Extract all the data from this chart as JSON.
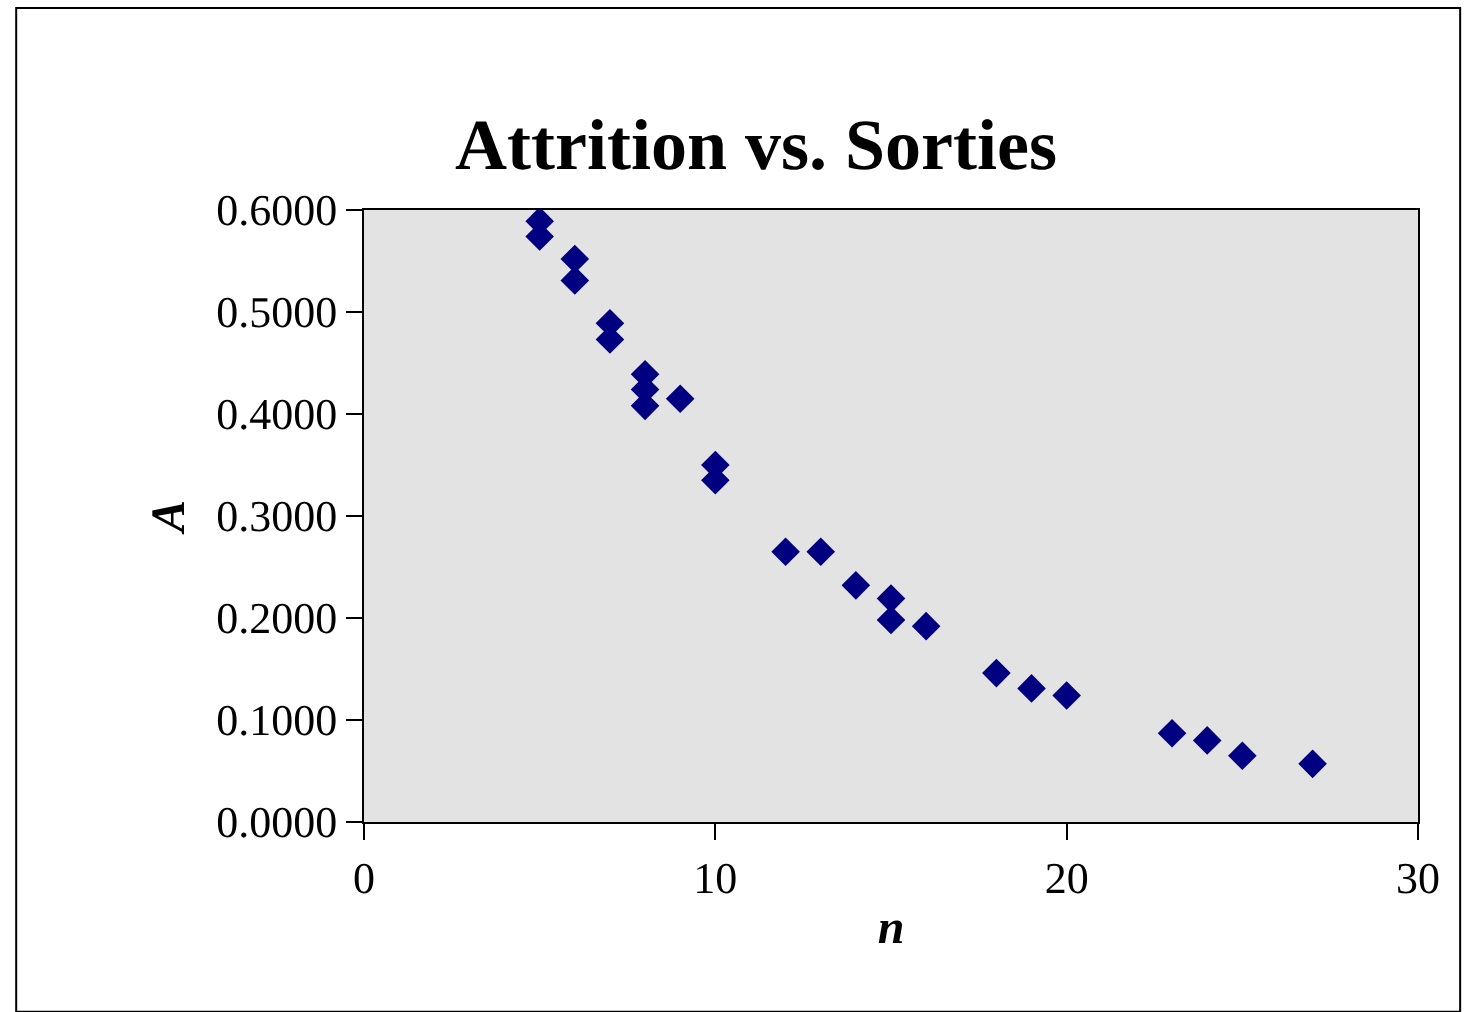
{
  "chart_data": {
    "type": "scatter",
    "title": "Attrition vs. Sorties",
    "xlabel": "n",
    "ylabel": "A",
    "x": [
      5,
      5,
      6,
      6,
      7,
      7,
      8,
      8,
      8,
      9,
      10,
      10,
      12,
      13,
      14,
      15,
      15,
      16,
      18,
      19,
      20,
      23,
      24,
      25,
      27
    ],
    "series": [
      {
        "color": "#000080",
        "values": [
          0.589,
          0.574,
          0.552,
          0.531,
          0.489,
          0.473,
          0.439,
          0.424,
          0.408,
          0.415,
          0.35,
          0.335,
          0.265,
          0.265,
          0.232,
          0.219,
          0.198,
          0.192,
          0.146,
          0.131,
          0.124,
          0.087,
          0.08,
          0.065,
          0.057
        ]
      }
    ],
    "xlim": [
      0,
      30
    ],
    "xticks": [
      0,
      10,
      20,
      30
    ],
    "ylim": [
      0,
      0.6
    ],
    "yticks": [
      {
        "value": 0,
        "label": "0.0000"
      },
      {
        "value": 0.1,
        "label": "0.1000"
      },
      {
        "value": 0.2,
        "label": "0.2000"
      },
      {
        "value": 0.3,
        "label": "0.3000"
      },
      {
        "value": 0.4,
        "label": "0.4000"
      },
      {
        "value": 0.5,
        "label": "0.5000"
      },
      {
        "value": 0.6,
        "label": "0.6000"
      }
    ],
    "grid": false,
    "marker": "diamond"
  }
}
